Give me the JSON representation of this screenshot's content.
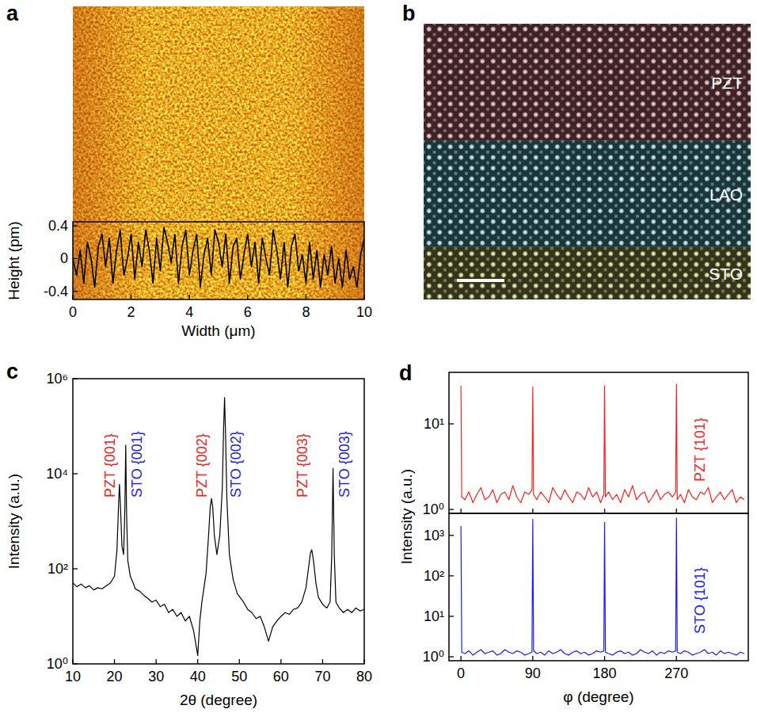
{
  "chart_data": [
    {
      "panel": "a",
      "type": "line",
      "xlabel": "Width (μm)",
      "ylabel": "Height (pm)",
      "color": "#000000",
      "x": [
        0,
        0.125,
        0.25,
        0.375,
        0.5,
        0.625,
        0.75,
        0.875,
        1,
        1.125,
        1.25,
        1.375,
        1.5,
        1.625,
        1.75,
        1.875,
        2,
        2.125,
        2.25,
        2.375,
        2.5,
        2.625,
        2.75,
        2.875,
        3,
        3.125,
        3.25,
        3.375,
        3.5,
        3.625,
        3.75,
        3.875,
        4,
        4.125,
        4.25,
        4.375,
        4.5,
        4.625,
        4.75,
        4.875,
        5,
        5.125,
        5.25,
        5.375,
        5.5,
        5.625,
        5.75,
        5.875,
        6,
        6.125,
        6.25,
        6.375,
        6.5,
        6.625,
        6.75,
        6.875,
        7,
        7.125,
        7.25,
        7.375,
        7.5,
        7.625,
        7.75,
        7.875,
        8,
        8.125,
        8.25,
        8.375,
        8.5,
        8.625,
        8.75,
        8.875,
        9,
        9.125,
        9.25,
        9.375,
        9.5,
        9.625,
        9.75,
        9.875,
        10
      ],
      "values": [
        0.0,
        -0.2,
        0.1,
        -0.3,
        0.2,
        0.0,
        -0.35,
        0.15,
        0.3,
        -0.1,
        0.25,
        -0.3,
        0.1,
        0.35,
        -0.2,
        0.0,
        0.3,
        -0.25,
        0.2,
        -0.1,
        0.35,
        0.1,
        -0.3,
        0.25,
        -0.15,
        0.38,
        0.2,
        -0.05,
        0.3,
        -0.3,
        0.15,
        0.35,
        -0.2,
        0.1,
        0.3,
        -0.35,
        0.05,
        0.25,
        -0.2,
        0.35,
        0.2,
        -0.1,
        0.3,
        -0.3,
        0.15,
        0.25,
        -0.25,
        0.05,
        0.3,
        -0.1,
        0.2,
        -0.3,
        0.25,
        0.0,
        -0.2,
        0.35,
        0.1,
        -0.25,
        0.2,
        -0.35,
        0.15,
        0.3,
        -0.15,
        0.05,
        -0.3,
        0.2,
        -0.25,
        0.1,
        -0.35,
        0.05,
        -0.2,
        0.15,
        -0.3,
        0.0,
        -0.35,
        0.1,
        -0.25,
        -0.1,
        -0.35,
        0.05,
        0.25
      ],
      "xlim": [
        0,
        10
      ],
      "ylim": [
        -0.5,
        0.45
      ],
      "xticks": [
        0,
        2,
        4,
        6,
        8,
        10
      ],
      "yticks": [
        -0.4,
        0,
        0.4
      ]
    },
    {
      "panel": "b",
      "type": "image",
      "labels": [
        "PZT",
        "LAO",
        "STO"
      ]
    },
    {
      "panel": "c",
      "type": "line",
      "xlabel": "2θ (degree)",
      "ylabel": "Intensity (a.u.)",
      "log": "y",
      "color": "#000000",
      "x": [
        10,
        11,
        12,
        13,
        14,
        15,
        16,
        17,
        18,
        19,
        20,
        20.6,
        21.0,
        21.2,
        21.4,
        21.8,
        22.2,
        22.5,
        22.7,
        22.9,
        23.2,
        23.8,
        24.5,
        25,
        26,
        27,
        28,
        29,
        30,
        31,
        32,
        33,
        34,
        35,
        36,
        37,
        38,
        39,
        40,
        40.5,
        41,
        42,
        42.6,
        43.0,
        43.3,
        43.6,
        44.0,
        44.6,
        45.3,
        45.9,
        46.2,
        46.45,
        46.7,
        47.0,
        47.6,
        48.5,
        49.5,
        51,
        52,
        53,
        54,
        55,
        56,
        57,
        58,
        59,
        60,
        61,
        62,
        63,
        64,
        65,
        66,
        66.7,
        67.1,
        67.4,
        67.8,
        68.4,
        69,
        70,
        71,
        71.8,
        72.2,
        72.5,
        72.8,
        73.2,
        74,
        75,
        76,
        77,
        78,
        79,
        80
      ],
      "values": [
        50,
        42,
        48,
        40,
        44,
        36,
        40,
        38,
        44,
        50,
        70,
        250,
        2500,
        6000,
        2500,
        300,
        200,
        2000,
        40000,
        1500,
        150,
        70,
        50,
        38,
        34,
        28,
        24,
        20,
        22,
        16,
        18,
        12,
        14,
        10,
        12,
        8,
        10,
        5,
        1.5,
        8,
        20,
        80,
        500,
        2000,
        3000,
        2000,
        500,
        200,
        500,
        5000,
        80000,
        400000,
        60000,
        3000,
        200,
        60,
        30,
        20,
        14,
        12,
        9,
        10,
        6,
        3,
        6,
        8,
        10,
        12,
        11,
        14,
        15,
        20,
        40,
        120,
        220,
        250,
        150,
        50,
        25,
        18,
        15,
        20,
        200,
        13000,
        200,
        20,
        15,
        12,
        14,
        12,
        15,
        13,
        14
      ],
      "xlim": [
        10,
        80
      ],
      "ylim": [
        1,
        1000000
      ],
      "xticks": [
        10,
        20,
        30,
        40,
        50,
        60,
        70,
        80
      ],
      "yticks": [
        {
          "value": 1,
          "label": "10⁰"
        },
        {
          "value": 100,
          "label": "10²"
        },
        {
          "value": 10000,
          "label": "10⁴"
        },
        {
          "value": 1000000,
          "label": "10⁶"
        }
      ],
      "annotations": [
        {
          "text": "PZT {001}",
          "x": 21.2,
          "color": "#e8261e"
        },
        {
          "text": "STO {001}",
          "x": 22.7,
          "color": "#2626d9"
        },
        {
          "text": "PZT {002}",
          "x": 43.3,
          "color": "#e8261e"
        },
        {
          "text": "STO {002}",
          "x": 46.45,
          "color": "#2626d9"
        },
        {
          "text": "PZT {003}",
          "x": 67.4,
          "color": "#e8261e"
        },
        {
          "text": "STO {003}",
          "x": 72.5,
          "color": "#2626d9"
        }
      ]
    },
    {
      "panel": "d",
      "type": "line",
      "ylabel": "Intensity (a.u.)",
      "log": "y",
      "tick_labels": "y",
      "x": [
        0,
        1,
        5,
        10,
        15,
        20,
        25,
        30,
        35,
        40,
        45,
        50,
        55,
        60,
        65,
        70,
        75,
        80,
        85,
        89,
        90,
        91,
        95,
        100,
        105,
        110,
        115,
        120,
        125,
        130,
        135,
        140,
        145,
        150,
        155,
        160,
        165,
        170,
        175,
        179,
        180,
        181,
        185,
        190,
        195,
        200,
        205,
        210,
        215,
        220,
        225,
        230,
        235,
        240,
        245,
        250,
        255,
        260,
        265,
        269,
        270,
        271,
        275,
        280,
        285,
        290,
        295,
        300,
        305,
        310,
        315,
        320,
        325,
        330,
        335,
        340,
        345,
        350,
        355
      ],
      "series": [
        {
          "name": "PZT {101}",
          "color": "#ff1f1f",
          "values": [
            28,
            1.4,
            1.3,
            1.6,
            1.2,
            1.5,
            1.8,
            1.3,
            1.4,
            1.7,
            1.2,
            1.5,
            1.6,
            1.3,
            1.9,
            1.4,
            1.2,
            1.6,
            1.5,
            1.7,
            27,
            1.5,
            1.3,
            1.6,
            1.4,
            1.2,
            1.8,
            1.5,
            1.3,
            1.7,
            1.4,
            1.2,
            1.6,
            1.5,
            1.3,
            1.8,
            1.4,
            1.6,
            1.2,
            1.5,
            28,
            1.4,
            1.6,
            1.3,
            1.5,
            1.2,
            1.7,
            1.4,
            1.9,
            1.3,
            1.5,
            1.6,
            1.2,
            1.4,
            1.7,
            1.3,
            1.5,
            1.6,
            1.4,
            1.6,
            29,
            1.3,
            1.5,
            1.2,
            1.7,
            1.4,
            1.3,
            1.6,
            1.5,
            1.8,
            1.2,
            1.4,
            1.6,
            1.3,
            1.5,
            1.7,
            1.2,
            1.4,
            1.3
          ]
        }
      ],
      "xlim": [
        -15,
        360
      ],
      "ylim": [
        0.9,
        40
      ],
      "xticks": [
        0,
        90,
        180,
        270
      ],
      "yticks": [
        {
          "value": 1,
          "label": "10⁰"
        },
        {
          "value": 10,
          "label": "10¹"
        }
      ]
    },
    {
      "type": "line",
      "xlabel": "φ (degree)",
      "log": "y",
      "x": [
        0,
        1,
        5,
        10,
        15,
        20,
        25,
        30,
        35,
        40,
        45,
        50,
        55,
        60,
        65,
        70,
        75,
        80,
        85,
        89,
        90,
        91,
        95,
        100,
        105,
        110,
        115,
        120,
        125,
        130,
        135,
        140,
        145,
        150,
        155,
        160,
        165,
        170,
        175,
        179,
        180,
        181,
        185,
        190,
        195,
        200,
        205,
        210,
        215,
        220,
        225,
        230,
        235,
        240,
        245,
        250,
        255,
        260,
        265,
        269,
        270,
        271,
        275,
        280,
        285,
        290,
        295,
        300,
        305,
        310,
        315,
        320,
        325,
        330,
        335,
        340,
        345,
        350,
        355
      ],
      "series": [
        {
          "name": "STO {101}",
          "color": "#1a1aff",
          "values": [
            1700,
            1.3,
            1.2,
            1.4,
            1.1,
            1.3,
            1.5,
            1.2,
            1.3,
            1.4,
            1.1,
            1.2,
            1.5,
            1.3,
            1.2,
            1.4,
            1.3,
            1.1,
            1.2,
            1.3,
            2500,
            1.4,
            1.2,
            1.3,
            1.1,
            1.4,
            1.2,
            1.3,
            1.5,
            1.2,
            1.1,
            1.3,
            1.4,
            1.2,
            1.3,
            1.1,
            1.2,
            1.4,
            1.3,
            1.4,
            2100,
            1.3,
            1.2,
            1.1,
            1.3,
            1.4,
            1.2,
            1.3,
            1.1,
            1.2,
            1.5,
            1.3,
            1.2,
            1.4,
            1.1,
            1.3,
            1.2,
            1.4,
            1.3,
            1.4,
            2700,
            1.3,
            1.2,
            1.4,
            1.3,
            1.1,
            1.2,
            1.3,
            1.5,
            1.2,
            1.3,
            1.1,
            1.4,
            1.2,
            1.3,
            1.2,
            1.1,
            1.3,
            1.2
          ]
        }
      ],
      "xlim": [
        -15,
        360
      ],
      "ylim": [
        0.8,
        3500
      ],
      "xticks": [
        0,
        90,
        180,
        270
      ],
      "yticks": [
        {
          "value": 1,
          "label": "10⁰"
        },
        {
          "value": 10,
          "label": "10¹"
        },
        {
          "value": 100,
          "label": "10²"
        },
        {
          "value": 1000,
          "label": "10³"
        }
      ]
    }
  ]
}
